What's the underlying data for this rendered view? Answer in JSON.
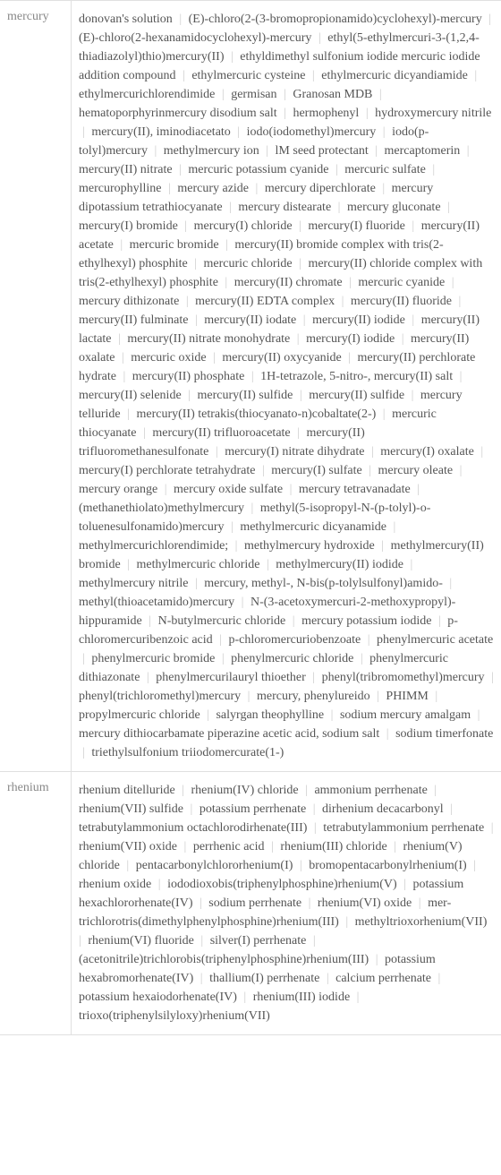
{
  "rows": [
    {
      "label": "mercury",
      "compounds": [
        "donovan's solution",
        "(E)-chloro(2-(3-bromopropionamido)cyclohexyl)-mercury",
        "(E)-chloro(2-hexanamidocyclohexyl)-mercury",
        "ethyl(5-ethylmercuri-3-(1,2,4-thiadiazolyl)thio)mercury(II)",
        "ethyldimethyl sulfonium iodide mercuric iodide addition compound",
        "ethylmercuric cysteine",
        "ethylmercuric dicyandiamide",
        "ethylmercurichlorendimide",
        "germisan",
        "Granosan MDB",
        "hematoporphyrinmercury disodium salt",
        "hermophenyl",
        "hydroxymercury nitrile",
        "mercury(II), iminodiacetato",
        "iodo(iodomethyl)mercury",
        "iodo(p-tolyl)mercury",
        "methylmercury ion",
        "lM seed protectant",
        "mercaptomerin",
        "mercury(II) nitrate",
        "mercuric potassium cyanide",
        "mercuric sulfate",
        "mercurophylline",
        "mercury azide",
        "mercury diperchlorate",
        "mercury dipotassium tetrathiocyanate",
        "mercury distearate",
        "mercury gluconate",
        "mercury(I) bromide",
        "mercury(I) chloride",
        "mercury(I) fluoride",
        "mercury(II) acetate",
        "mercuric bromide",
        "mercury(II) bromide complex with tris(2-ethylhexyl) phosphite",
        "mercuric chloride",
        "mercury(II) chloride complex with tris(2-ethylhexyl) phosphite",
        "mercury(II) chromate",
        "mercuric cyanide",
        "mercury dithizonate",
        "mercury(II) EDTA complex",
        "mercury(II) fluoride",
        "mercury(II) fulminate",
        "mercury(II) iodate",
        "mercury(II) iodide",
        "mercury(II) lactate",
        "mercury(II) nitrate monohydrate",
        "mercury(I) iodide",
        "mercury(II) oxalate",
        "mercuric oxide",
        "mercury(II) oxycyanide",
        "mercury(II) perchlorate hydrate",
        "mercury(II) phosphate",
        "1H-tetrazole, 5-nitro-, mercury(II) salt",
        "mercury(II) selenide",
        "mercury(II) sulfide",
        "mercury(II) sulfide",
        "mercury telluride",
        "mercury(II) tetrakis(thiocyanato-n)cobaltate(2-)",
        "mercuric thiocyanate",
        "mercury(II) trifluoroacetate",
        "mercury(II) trifluoromethanesulfonate",
        "mercury(I) nitrate dihydrate",
        "mercury(I) oxalate",
        "mercury(I) perchlorate tetrahydrate",
        "mercury(I) sulfate",
        "mercury oleate",
        "mercury orange",
        "mercury oxide sulfate",
        "mercury tetravanadate",
        "(methanethiolato)methylmercury",
        "methyl(5-isopropyl-N-(p-tolyl)-o-toluenesulfonamido)mercury",
        "methylmercuric dicyanamide",
        "methylmercurichlorendimide;",
        "methylmercury hydroxide",
        "methylmercury(II) bromide",
        "methylmercuric chloride",
        "methylmercury(II) iodide",
        "methylmercury nitrile",
        "mercury, methyl-, N-bis(p-tolylsulfonyl)amido-",
        "methyl(thioacetamido)mercury",
        "N-(3-acetoxymercuri-2-methoxypropyl)-hippuramide",
        "N-butylmercuric chloride",
        "mercury potassium iodide",
        "p-chloromercuribenzoic acid",
        "p-chloromercuriobenzoate",
        "phenylmercuric acetate",
        "phenylmercuric bromide",
        "phenylmercuric chloride",
        "phenylmercuric dithiazonate",
        "phenylmercurilauryl thioether",
        "phenyl(tribromomethyl)mercury",
        "phenyl(trichloromethyl)mercury",
        "mercury, phenylureido",
        "PHIMM",
        "propylmercuric chloride",
        "salyrgan theophylline",
        "sodium mercury amalgam",
        "mercury dithiocarbamate piperazine acetic acid, sodium salt",
        "sodium timerfonate",
        "triethylsulfonium triiodomercurate(1-)"
      ]
    },
    {
      "label": "rhenium",
      "compounds": [
        "rhenium ditelluride",
        "rhenium(IV) chloride",
        "ammonium perrhenate",
        "rhenium(VII) sulfide",
        "potassium perrhenate",
        "dirhenium decacarbonyl",
        "tetrabutylammonium octachlorodirhenate(III)",
        "tetrabutylammonium perrhenate",
        "rhenium(VII) oxide",
        "perrhenic acid",
        "rhenium(III) chloride",
        "rhenium(V) chloride",
        "pentacarbonylchlororhenium(I)",
        "bromopentacarbonylrhenium(I)",
        "rhenium oxide",
        "iododioxobis(triphenylphosphine)rhenium(V)",
        "potassium hexachlororhenate(IV)",
        "sodium perrhenate",
        "rhenium(VI) oxide",
        "mer-trichlorotris(dimethylphenylphosphine)rhenium(III)",
        "methyltrioxorhenium(VII)",
        "rhenium(VI) fluoride",
        "silver(I) perrhenate",
        "(acetonitrile)trichlorobis(triphenylphosphine)rhenium(III)",
        "potassium hexabromorhenate(IV)",
        "thallium(I) perrhenate",
        "calcium perrhenate",
        "potassium hexaiodorhenate(IV)",
        "rhenium(III) iodide",
        "trioxo(triphenylsilyloxy)rhenium(VII)"
      ]
    }
  ],
  "styling": {
    "separator": "|",
    "label_color": "#888888",
    "content_color": "#555555",
    "separator_color": "#cccccc",
    "border_color": "#e0e0e0",
    "font_size": 14,
    "font_family": "Georgia, serif"
  }
}
